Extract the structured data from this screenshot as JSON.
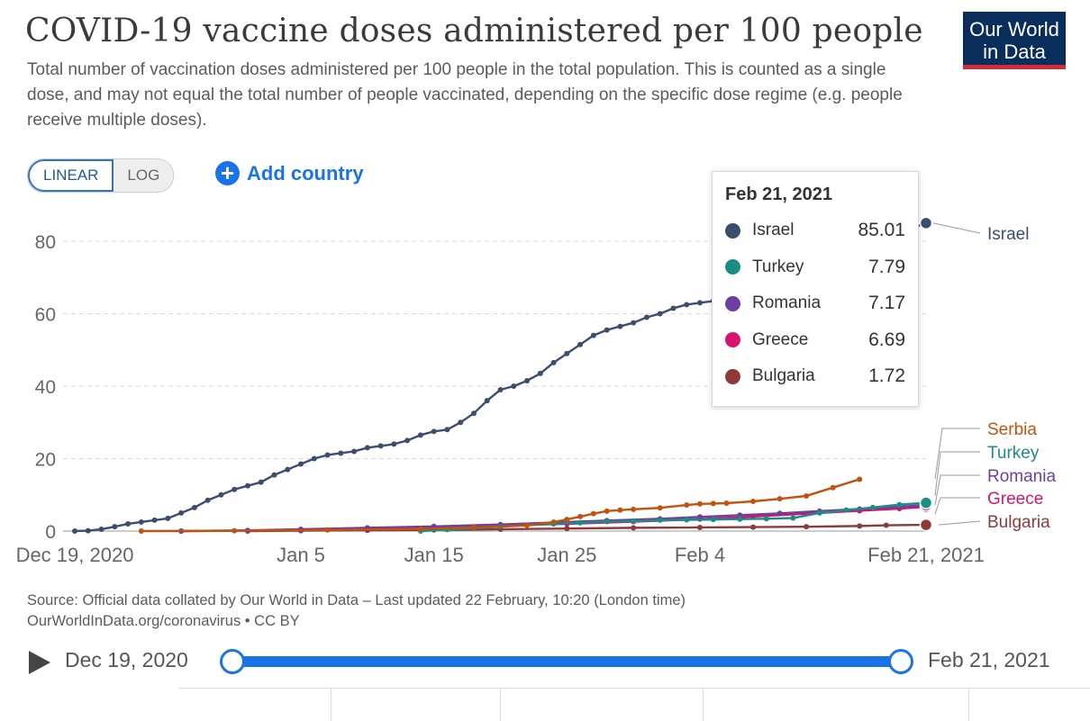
{
  "header": {
    "title": "COVID-19 vaccine doses administered per 100 people",
    "subtitle": "Total number of vaccination doses administered per 100 people in the total population. This is counted as a single dose, and may not equal the total number of people vaccinated, depending on the specific dose regime (e.g. people receive multiple doses).",
    "logo_line1": "Our World",
    "logo_line2": "in Data",
    "logo_color": "#0a2e5c",
    "logo_accent": "#d42b3a"
  },
  "controls": {
    "linear_label": "LINEAR",
    "log_label": "LOG",
    "active_scale": "LINEAR",
    "add_country_label": "Add country",
    "add_country_icon": "plus-circle-icon"
  },
  "tooltip": {
    "date": "Feb 21, 2021",
    "rows": [
      {
        "name": "Israel",
        "value": "85.01",
        "color": "#3c4e6e"
      },
      {
        "name": "Turkey",
        "value": "7.79",
        "color": "#1a8e84"
      },
      {
        "name": "Romania",
        "value": "7.17",
        "color": "#6e3ea0"
      },
      {
        "name": "Greece",
        "value": "6.69",
        "color": "#d6136f"
      },
      {
        "name": "Bulgaria",
        "value": "1.72",
        "color": "#8c3a3a"
      }
    ]
  },
  "chart_data": {
    "type": "line",
    "x_domain": [
      "2020-12-19",
      "2021-02-21"
    ],
    "ylim": [
      0,
      90
    ],
    "y_ticks": [
      0,
      20,
      40,
      60,
      80
    ],
    "x_ticks": [
      {
        "date": "2020-12-19",
        "label": "Dec 19, 2020"
      },
      {
        "date": "2021-01-05",
        "label": "Jan 5"
      },
      {
        "date": "2021-01-15",
        "label": "Jan 15"
      },
      {
        "date": "2021-01-25",
        "label": "Jan 25"
      },
      {
        "date": "2021-02-04",
        "label": "Feb 4"
      },
      {
        "date": "2021-02-21",
        "label": "Feb 21, 2021"
      }
    ],
    "grid": "horizontal-dashed",
    "series": [
      {
        "name": "Israel",
        "color": "#3c4e6e",
        "end_marker": true,
        "points": [
          [
            "2020-12-19",
            0.0
          ],
          [
            "2020-12-20",
            0.1
          ],
          [
            "2020-12-21",
            0.5
          ],
          [
            "2020-12-22",
            1.2
          ],
          [
            "2020-12-23",
            2.0
          ],
          [
            "2020-12-24",
            2.5
          ],
          [
            "2020-12-25",
            3.0
          ],
          [
            "2020-12-26",
            3.5
          ],
          [
            "2020-12-27",
            5.0
          ],
          [
            "2020-12-28",
            6.5
          ],
          [
            "2020-12-29",
            8.5
          ],
          [
            "2020-12-30",
            10.0
          ],
          [
            "2020-12-31",
            11.5
          ],
          [
            "2021-01-01",
            12.5
          ],
          [
            "2021-01-02",
            13.5
          ],
          [
            "2021-01-03",
            15.5
          ],
          [
            "2021-01-04",
            17.0
          ],
          [
            "2021-01-05",
            18.5
          ],
          [
            "2021-01-06",
            20.0
          ],
          [
            "2021-01-07",
            21.0
          ],
          [
            "2021-01-08",
            21.5
          ],
          [
            "2021-01-09",
            22.0
          ],
          [
            "2021-01-10",
            23.0
          ],
          [
            "2021-01-11",
            23.5
          ],
          [
            "2021-01-12",
            24.0
          ],
          [
            "2021-01-13",
            25.0
          ],
          [
            "2021-01-14",
            26.5
          ],
          [
            "2021-01-15",
            27.5
          ],
          [
            "2021-01-16",
            28.0
          ],
          [
            "2021-01-17",
            30.0
          ],
          [
            "2021-01-18",
            32.5
          ],
          [
            "2021-01-19",
            36.0
          ],
          [
            "2021-01-20",
            39.0
          ],
          [
            "2021-01-21",
            40.0
          ],
          [
            "2021-01-22",
            41.5
          ],
          [
            "2021-01-23",
            43.5
          ],
          [
            "2021-01-24",
            46.5
          ],
          [
            "2021-01-25",
            49.0
          ],
          [
            "2021-01-26",
            51.5
          ],
          [
            "2021-01-27",
            54.0
          ],
          [
            "2021-01-28",
            55.5
          ],
          [
            "2021-01-29",
            56.5
          ],
          [
            "2021-01-30",
            57.5
          ],
          [
            "2021-01-31",
            59.0
          ],
          [
            "2021-02-01",
            60.0
          ],
          [
            "2021-02-02",
            61.5
          ],
          [
            "2021-02-03",
            62.5
          ],
          [
            "2021-02-04",
            63.0
          ],
          [
            "2021-02-05",
            63.5
          ],
          [
            "2021-02-21",
            85.01
          ]
        ]
      },
      {
        "name": "Serbia",
        "color": "#c4520d",
        "end_marker": false,
        "points": [
          [
            "2020-12-24",
            0.0
          ],
          [
            "2020-12-31",
            0.1
          ],
          [
            "2021-01-07",
            0.3
          ],
          [
            "2021-01-14",
            0.6
          ],
          [
            "2021-01-18",
            1.0
          ],
          [
            "2021-01-22",
            1.6
          ],
          [
            "2021-01-24",
            2.5
          ],
          [
            "2021-01-25",
            3.2
          ],
          [
            "2021-01-26",
            4.0
          ],
          [
            "2021-01-27",
            4.8
          ],
          [
            "2021-01-28",
            5.5
          ],
          [
            "2021-01-29",
            5.8
          ],
          [
            "2021-01-30",
            6.0
          ],
          [
            "2021-02-01",
            6.4
          ],
          [
            "2021-02-03",
            7.2
          ],
          [
            "2021-02-04",
            7.5
          ],
          [
            "2021-02-05",
            7.6
          ],
          [
            "2021-02-06",
            7.7
          ],
          [
            "2021-02-08",
            8.2
          ],
          [
            "2021-02-10",
            8.9
          ],
          [
            "2021-02-12",
            9.7
          ],
          [
            "2021-02-14",
            12.0
          ],
          [
            "2021-02-16",
            14.3
          ]
        ]
      },
      {
        "name": "Turkey",
        "color": "#1a8e84",
        "end_marker": true,
        "points": [
          [
            "2021-01-14",
            0.0
          ],
          [
            "2021-01-16",
            0.4
          ],
          [
            "2021-01-18",
            0.8
          ],
          [
            "2021-01-20",
            1.2
          ],
          [
            "2021-01-22",
            1.6
          ],
          [
            "2021-01-24",
            2.0
          ],
          [
            "2021-01-26",
            2.3
          ],
          [
            "2021-01-28",
            2.6
          ],
          [
            "2021-01-30",
            2.8
          ],
          [
            "2021-02-01",
            3.0
          ],
          [
            "2021-02-03",
            3.1
          ],
          [
            "2021-02-05",
            3.2
          ],
          [
            "2021-02-07",
            3.3
          ],
          [
            "2021-02-09",
            3.4
          ],
          [
            "2021-02-11",
            3.6
          ],
          [
            "2021-02-13",
            5.0
          ],
          [
            "2021-02-15",
            5.8
          ],
          [
            "2021-02-17",
            6.5
          ],
          [
            "2021-02-19",
            7.3
          ],
          [
            "2021-02-21",
            7.79
          ]
        ]
      },
      {
        "name": "Romania",
        "color": "#6e3ea0",
        "end_marker": true,
        "points": [
          [
            "2020-12-27",
            0.0
          ],
          [
            "2021-01-01",
            0.2
          ],
          [
            "2021-01-05",
            0.5
          ],
          [
            "2021-01-10",
            0.9
          ],
          [
            "2021-01-15",
            1.3
          ],
          [
            "2021-01-20",
            1.8
          ],
          [
            "2021-01-25",
            2.5
          ],
          [
            "2021-01-28",
            2.9
          ],
          [
            "2021-02-01",
            3.4
          ],
          [
            "2021-02-04",
            3.9
          ],
          [
            "2021-02-07",
            4.4
          ],
          [
            "2021-02-10",
            4.9
          ],
          [
            "2021-02-13",
            5.5
          ],
          [
            "2021-02-16",
            6.1
          ],
          [
            "2021-02-19",
            6.7
          ],
          [
            "2021-02-21",
            7.17
          ]
        ]
      },
      {
        "name": "Greece",
        "color": "#d6136f",
        "end_marker": true,
        "points": [
          [
            "2020-12-27",
            0.0
          ],
          [
            "2021-01-01",
            0.1
          ],
          [
            "2021-01-05",
            0.3
          ],
          [
            "2021-01-10",
            0.6
          ],
          [
            "2021-01-15",
            1.0
          ],
          [
            "2021-01-20",
            1.5
          ],
          [
            "2021-01-25",
            2.0
          ],
          [
            "2021-01-30",
            2.6
          ],
          [
            "2021-02-04",
            3.3
          ],
          [
            "2021-02-08",
            4.0
          ],
          [
            "2021-02-12",
            4.8
          ],
          [
            "2021-02-16",
            5.6
          ],
          [
            "2021-02-19",
            6.2
          ],
          [
            "2021-02-21",
            6.69
          ]
        ]
      },
      {
        "name": "Bulgaria",
        "color": "#8c3a3a",
        "end_marker": true,
        "points": [
          [
            "2021-01-01",
            0.0
          ],
          [
            "2021-01-05",
            0.1
          ],
          [
            "2021-01-10",
            0.2
          ],
          [
            "2021-01-15",
            0.3
          ],
          [
            "2021-01-20",
            0.5
          ],
          [
            "2021-01-25",
            0.7
          ],
          [
            "2021-01-30",
            0.9
          ],
          [
            "2021-02-04",
            1.0
          ],
          [
            "2021-02-08",
            1.1
          ],
          [
            "2021-02-12",
            1.2
          ],
          [
            "2021-02-16",
            1.4
          ],
          [
            "2021-02-18",
            1.6
          ],
          [
            "2021-02-21",
            1.72
          ]
        ]
      }
    ],
    "right_labels": [
      {
        "name": "Israel",
        "color": "#3c4e6e",
        "value": 85.01
      },
      {
        "name": "Serbia",
        "color": "#c4520d",
        "value": 14.3
      },
      {
        "name": "Turkey",
        "color": "#1a8e84",
        "value": 7.79
      },
      {
        "name": "Romania",
        "color": "#6e3ea0",
        "value": 7.17
      },
      {
        "name": "Greece",
        "color": "#d6136f",
        "value": 6.69
      },
      {
        "name": "Bulgaria",
        "color": "#8c3a3a",
        "value": 1.72
      }
    ]
  },
  "footer": {
    "source_line1": "Source: Official data collated by Our World in Data – Last updated 22 February, 10:20 (London time)",
    "source_line2": "OurWorldInData.org/coronavirus • CC BY"
  },
  "timeline": {
    "start_label": "Dec 19, 2020",
    "end_label": "Feb 21, 2021",
    "play_icon": "play-icon",
    "track_color": "#1a73e8"
  }
}
